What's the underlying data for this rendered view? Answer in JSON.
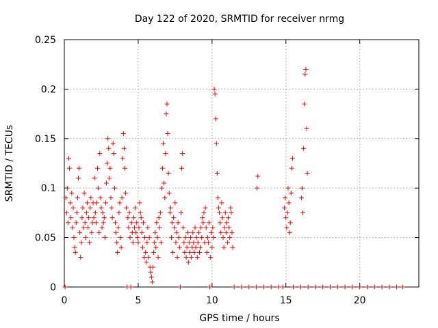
{
  "chart_data": {
    "type": "scatter",
    "title": "Day 122 of 2020, SRMTID for receiver nrmg",
    "xlabel": "GPS time / hours",
    "ylabel": "SRMTID / TECUs",
    "xlim": [
      0,
      24
    ],
    "ylim": [
      0,
      0.25
    ],
    "xticks": [
      0,
      5,
      10,
      15,
      20
    ],
    "yticks": [
      0,
      0.05,
      0.1,
      0.15,
      0.2,
      0.25
    ],
    "xtick_labels": [
      "0",
      "5",
      "10",
      "15",
      "20"
    ],
    "ytick_labels": [
      "0",
      "0.05",
      "0.1",
      "0.15",
      "0.2",
      "0.25"
    ],
    "grid": true,
    "marker": "+",
    "series": [
      {
        "name": "SRMTID",
        "color": "#ff0000",
        "points": [
          [
            0.05,
            0.0
          ],
          [
            0.1,
            0.09
          ],
          [
            0.15,
            0.075
          ],
          [
            0.2,
            0.1
          ],
          [
            0.25,
            0.065
          ],
          [
            0.3,
            0.13
          ],
          [
            0.35,
            0.12
          ],
          [
            0.4,
            0.085
          ],
          [
            0.45,
            0.07
          ],
          [
            0.5,
            0.095
          ],
          [
            0.55,
            0.06
          ],
          [
            0.6,
            0.08
          ],
          [
            0.65,
            0.05
          ],
          [
            0.7,
            0.04
          ],
          [
            0.75,
            0.035
          ],
          [
            0.8,
            0.065
          ],
          [
            0.85,
            0.075
          ],
          [
            0.9,
            0.09
          ],
          [
            0.95,
            0.11
          ],
          [
            1.0,
            0.12
          ],
          [
            1.05,
            0.055
          ],
          [
            1.1,
            0.03
          ],
          [
            1.15,
            0.045
          ],
          [
            1.2,
            0.07
          ],
          [
            1.25,
            0.08
          ],
          [
            1.3,
            0.06
          ],
          [
            1.35,
            0.095
          ],
          [
            1.4,
            0.065
          ],
          [
            1.45,
            0.05
          ],
          [
            1.5,
            0.075
          ],
          [
            1.55,
            0.085
          ],
          [
            1.6,
            0.06
          ],
          [
            1.65,
            0.07
          ],
          [
            1.7,
            0.045
          ],
          [
            1.75,
            0.08
          ],
          [
            1.8,
            0.09
          ],
          [
            1.85,
            0.055
          ],
          [
            1.9,
            0.065
          ],
          [
            1.95,
            0.085
          ],
          [
            2.0,
            0.07
          ],
          [
            2.05,
            0.11
          ],
          [
            2.1,
            0.075
          ],
          [
            2.15,
            0.065
          ],
          [
            2.2,
            0.085
          ],
          [
            2.25,
            0.12
          ],
          [
            2.3,
            0.1
          ],
          [
            2.35,
            0.055
          ],
          [
            2.4,
            0.135
          ],
          [
            2.45,
            0.09
          ],
          [
            2.5,
            0.08
          ],
          [
            2.55,
            0.06
          ],
          [
            2.6,
            0.075
          ],
          [
            2.65,
            0.065
          ],
          [
            2.7,
            0.07
          ],
          [
            2.75,
            0.05
          ],
          [
            2.8,
            0.085
          ],
          [
            2.85,
            0.105
          ],
          [
            2.9,
            0.125
          ],
          [
            2.95,
            0.15
          ],
          [
            3.0,
            0.14
          ],
          [
            3.05,
            0.11
          ],
          [
            3.1,
            0.12
          ],
          [
            3.15,
            0.09
          ],
          [
            3.2,
            0.08
          ],
          [
            3.25,
            0.07
          ],
          [
            3.3,
            0.145
          ],
          [
            3.35,
            0.135
          ],
          [
            3.4,
            0.1
          ],
          [
            3.45,
            0.065
          ],
          [
            3.5,
            0.055
          ],
          [
            3.55,
            0.045
          ],
          [
            3.6,
            0.035
          ],
          [
            3.65,
            0.06
          ],
          [
            3.7,
            0.075
          ],
          [
            3.75,
            0.085
          ],
          [
            3.8,
            0.05
          ],
          [
            3.85,
            0.04
          ],
          [
            3.9,
            0.09
          ],
          [
            3.95,
            0.13
          ],
          [
            4.0,
            0.155
          ],
          [
            4.05,
            0.14
          ],
          [
            4.1,
            0.12
          ],
          [
            4.15,
            0.095
          ],
          [
            4.2,
            0.08
          ],
          [
            4.25,
            0.0
          ],
          [
            4.3,
            0.07
          ],
          [
            4.35,
            0.06
          ],
          [
            4.4,
            0.075
          ],
          [
            4.45,
            0.05
          ],
          [
            4.5,
            0.0
          ],
          [
            4.55,
            0.065
          ],
          [
            4.6,
            0.055
          ],
          [
            4.65,
            0.045
          ],
          [
            4.7,
            0.07
          ],
          [
            4.75,
            0.06
          ],
          [
            4.8,
            0.08
          ],
          [
            4.85,
            0.055
          ],
          [
            4.9,
            0.065
          ],
          [
            4.95,
            0.05
          ],
          [
            5.0,
            0.045
          ],
          [
            5.05,
            0.06
          ],
          [
            5.1,
            0.085
          ],
          [
            5.15,
            0.075
          ],
          [
            5.2,
            0.07
          ],
          [
            5.25,
            0.055
          ],
          [
            5.3,
            0.04
          ],
          [
            5.35,
            0.065
          ],
          [
            5.4,
            0.03
          ],
          [
            5.45,
            0.05
          ],
          [
            5.5,
            0.035
          ],
          [
            5.55,
            0.025
          ],
          [
            5.6,
            0.045
          ],
          [
            5.65,
            0.06
          ],
          [
            5.7,
            0.03
          ],
          [
            5.75,
            0.05
          ],
          [
            5.8,
            0.02
          ],
          [
            5.85,
            0.015
          ],
          [
            5.9,
            0.01
          ],
          [
            5.95,
            0.005
          ],
          [
            6.0,
            0.02
          ],
          [
            6.05,
            0.035
          ],
          [
            6.1,
            0.045
          ],
          [
            6.15,
            0.055
          ],
          [
            6.2,
            0.04
          ],
          [
            6.25,
            0.065
          ],
          [
            6.3,
            0.05
          ],
          [
            6.35,
            0.03
          ],
          [
            6.4,
            0.07
          ],
          [
            6.45,
            0.06
          ],
          [
            6.5,
            0.075
          ],
          [
            6.55,
            0.045
          ],
          [
            6.6,
            0.1
          ],
          [
            6.65,
            0.12
          ],
          [
            6.7,
            0.145
          ],
          [
            6.75,
            0.105
          ],
          [
            6.8,
            0.09
          ],
          [
            6.85,
            0.135
          ],
          [
            6.9,
            0.175
          ],
          [
            6.95,
            0.185
          ],
          [
            7.0,
            0.155
          ],
          [
            7.05,
            0.115
          ],
          [
            7.1,
            0.095
          ],
          [
            7.15,
            0.075
          ],
          [
            7.2,
            0.08
          ],
          [
            7.25,
            0.05
          ],
          [
            7.3,
            0.065
          ],
          [
            7.35,
            0.035
          ],
          [
            7.4,
            0.07
          ],
          [
            7.45,
            0.06
          ],
          [
            7.5,
            0.085
          ],
          [
            7.55,
            0.045
          ],
          [
            7.6,
            0.055
          ],
          [
            7.65,
            0.03
          ],
          [
            7.7,
            0.065
          ],
          [
            7.75,
            0.05
          ],
          [
            7.8,
            0.04
          ],
          [
            7.85,
            0.0
          ],
          [
            7.9,
            0.075
          ],
          [
            7.95,
            0.12
          ],
          [
            8.0,
            0.135
          ],
          [
            8.05,
            0.06
          ],
          [
            8.1,
            0.045
          ],
          [
            8.15,
            0.035
          ],
          [
            8.2,
            0.05
          ],
          [
            8.25,
            0.03
          ],
          [
            8.3,
            0.04
          ],
          [
            8.35,
            0.055
          ],
          [
            8.4,
            0.025
          ],
          [
            8.45,
            0.045
          ],
          [
            8.5,
            0.035
          ],
          [
            8.55,
            0.05
          ],
          [
            8.6,
            0.03
          ],
          [
            8.65,
            0.04
          ],
          [
            8.7,
            0.055
          ],
          [
            8.75,
            0.045
          ],
          [
            8.8,
            0.035
          ],
          [
            8.85,
            0.06
          ],
          [
            8.9,
            0.04
          ],
          [
            8.95,
            0.05
          ],
          [
            9.0,
            0.03
          ],
          [
            9.05,
            0.045
          ],
          [
            9.1,
            0.055
          ],
          [
            9.15,
            0.035
          ],
          [
            9.2,
            0.04
          ],
          [
            9.25,
            0.06
          ],
          [
            9.3,
            0.05
          ],
          [
            9.35,
            0.07
          ],
          [
            9.4,
            0.065
          ],
          [
            9.45,
            0.075
          ],
          [
            9.5,
            0.045
          ],
          [
            9.55,
            0.08
          ],
          [
            9.6,
            0.06
          ],
          [
            9.65,
            0.035
          ],
          [
            9.7,
            0.05
          ],
          [
            9.75,
            0.045
          ],
          [
            9.8,
            0.065
          ],
          [
            9.85,
            0.0
          ],
          [
            9.9,
            0.03
          ],
          [
            9.95,
            0.055
          ],
          [
            10.0,
            0.04
          ],
          [
            10.05,
            0.06
          ],
          [
            10.1,
            0.05
          ],
          [
            10.15,
            0.2
          ],
          [
            10.2,
            0.195
          ],
          [
            10.25,
            0.17
          ],
          [
            10.3,
            0.145
          ],
          [
            10.35,
            0.115
          ],
          [
            10.4,
            0.09
          ],
          [
            10.45,
            0.08
          ],
          [
            10.5,
            0.075
          ],
          [
            10.55,
            0.065
          ],
          [
            10.6,
            0.055
          ],
          [
            10.65,
            0.085
          ],
          [
            10.7,
            0.07
          ],
          [
            10.75,
            0.05
          ],
          [
            10.8,
            0.04
          ],
          [
            10.85,
            0.06
          ],
          [
            10.9,
            0.075
          ],
          [
            10.95,
            0.055
          ],
          [
            11.0,
            0.065
          ],
          [
            11.05,
            0.045
          ],
          [
            11.1,
            0.07
          ],
          [
            11.15,
            0.06
          ],
          [
            11.2,
            0.05
          ],
          [
            11.25,
            0.08
          ],
          [
            11.3,
            0.075
          ],
          [
            11.35,
            0.055
          ],
          [
            11.4,
            0.04
          ],
          [
            11.5,
            0.0
          ],
          [
            12.0,
            0.0
          ],
          [
            12.5,
            0.0
          ],
          [
            13.0,
            0.0
          ],
          [
            13.05,
            0.1
          ],
          [
            13.1,
            0.112
          ],
          [
            13.5,
            0.0
          ],
          [
            14.0,
            0.0
          ],
          [
            14.5,
            0.0
          ],
          [
            14.8,
            0.0
          ],
          [
            14.9,
            0.08
          ],
          [
            14.95,
            0.09
          ],
          [
            15.0,
            0.07
          ],
          [
            15.05,
            0.06
          ],
          [
            15.1,
            0.075
          ],
          [
            15.15,
            0.1
          ],
          [
            15.2,
            0.085
          ],
          [
            15.25,
            0.055
          ],
          [
            15.3,
            0.065
          ],
          [
            15.35,
            0.095
          ],
          [
            15.4,
            0.12
          ],
          [
            15.45,
            0.13
          ],
          [
            15.5,
            0.0
          ],
          [
            16.0,
            0.0
          ],
          [
            16.05,
            0.09
          ],
          [
            16.1,
            0.1
          ],
          [
            16.15,
            0.075
          ],
          [
            16.2,
            0.14
          ],
          [
            16.25,
            0.185
          ],
          [
            16.3,
            0.215
          ],
          [
            16.35,
            0.22
          ],
          [
            16.4,
            0.16
          ],
          [
            16.45,
            0.115
          ],
          [
            16.5,
            0.0
          ],
          [
            17.0,
            0.0
          ],
          [
            17.5,
            0.0
          ],
          [
            18.0,
            0.0
          ],
          [
            18.5,
            0.0
          ],
          [
            19.0,
            0.0
          ],
          [
            19.5,
            0.0
          ],
          [
            20.0,
            0.0
          ],
          [
            20.5,
            0.0
          ],
          [
            21.0,
            0.0
          ],
          [
            21.5,
            0.0
          ],
          [
            22.0,
            0.0
          ],
          [
            22.5,
            0.0
          ],
          [
            22.9,
            0.0
          ]
        ]
      }
    ]
  }
}
